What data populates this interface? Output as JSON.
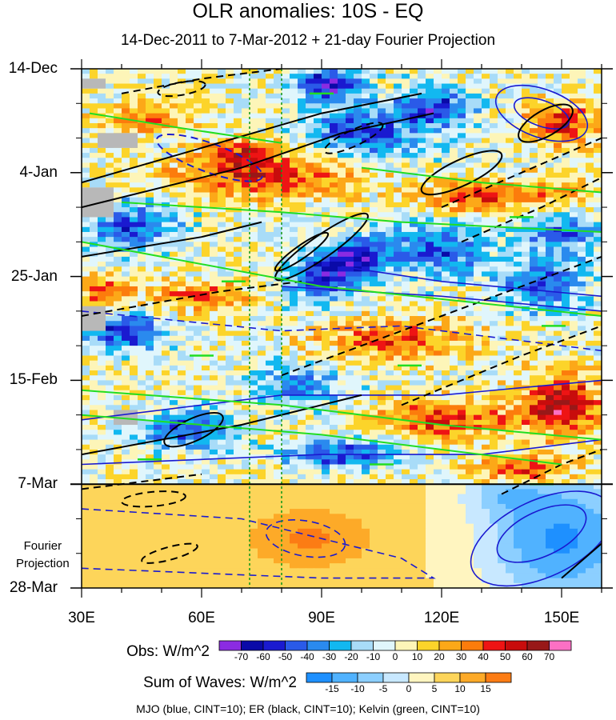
{
  "chart_data": {
    "type": "heatmap",
    "title": "OLR anomalies: 10S - EQ",
    "subtitle": "14-Dec-2011 to 7-Mar-2012 + 21-day Fourier Projection",
    "x_axis": {
      "label": "",
      "range": [
        30,
        160
      ],
      "ticks": [
        30,
        60,
        90,
        120,
        150
      ],
      "tick_labels": [
        "30E",
        "60E",
        "90E",
        "120E",
        "150E"
      ]
    },
    "y_axis": {
      "label": "",
      "tick_days": [
        0,
        21,
        42,
        63,
        84,
        105
      ],
      "tick_labels": [
        "14-Dec",
        "4-Jan",
        "25-Jan",
        "15-Feb",
        "7-Mar",
        "28-Mar"
      ],
      "obs_end_day": 84,
      "projection_label": "Fourier\nProjection"
    },
    "reference_lines_lon": [
      72,
      80
    ],
    "obs_colorbar": {
      "title": "Obs: W/m^2",
      "levels": [
        -70,
        -60,
        -50,
        -40,
        -30,
        -20,
        -10,
        0,
        10,
        20,
        30,
        40,
        50,
        60,
        70
      ],
      "colors": [
        "#8b2be2",
        "#0a0aa8",
        "#1a1ad0",
        "#2a5ae8",
        "#2a8aee",
        "#12b8f0",
        "#a8dcf8",
        "#e0f6fc",
        "#fdf5b8",
        "#fcd42a",
        "#fca818",
        "#fc7c0c",
        "#ee1414",
        "#c80c0c",
        "#981818",
        "#fc70c4"
      ]
    },
    "waves_colorbar": {
      "title": "Sum of Waves: W/m^2",
      "levels": [
        -15,
        -10,
        -5,
        0,
        5,
        10,
        15
      ],
      "colors": [
        "#1e90ff",
        "#50b2ff",
        "#8ccfff",
        "#c8e8ff",
        "#fff5c0",
        "#fdd55a",
        "#fdaa28",
        "#fc7c14"
      ]
    },
    "contours": "MJO (blue, CINT=10); ER (black, CINT=10); Kelvin (green, CINT=10)",
    "series": [
      {
        "name": "MJO",
        "color": "#1a1ad0",
        "cint": 10
      },
      {
        "name": "ER",
        "color": "#000000",
        "cint": 10
      },
      {
        "name": "Kelvin",
        "color": "#22dd22",
        "cint": 10
      }
    ]
  }
}
